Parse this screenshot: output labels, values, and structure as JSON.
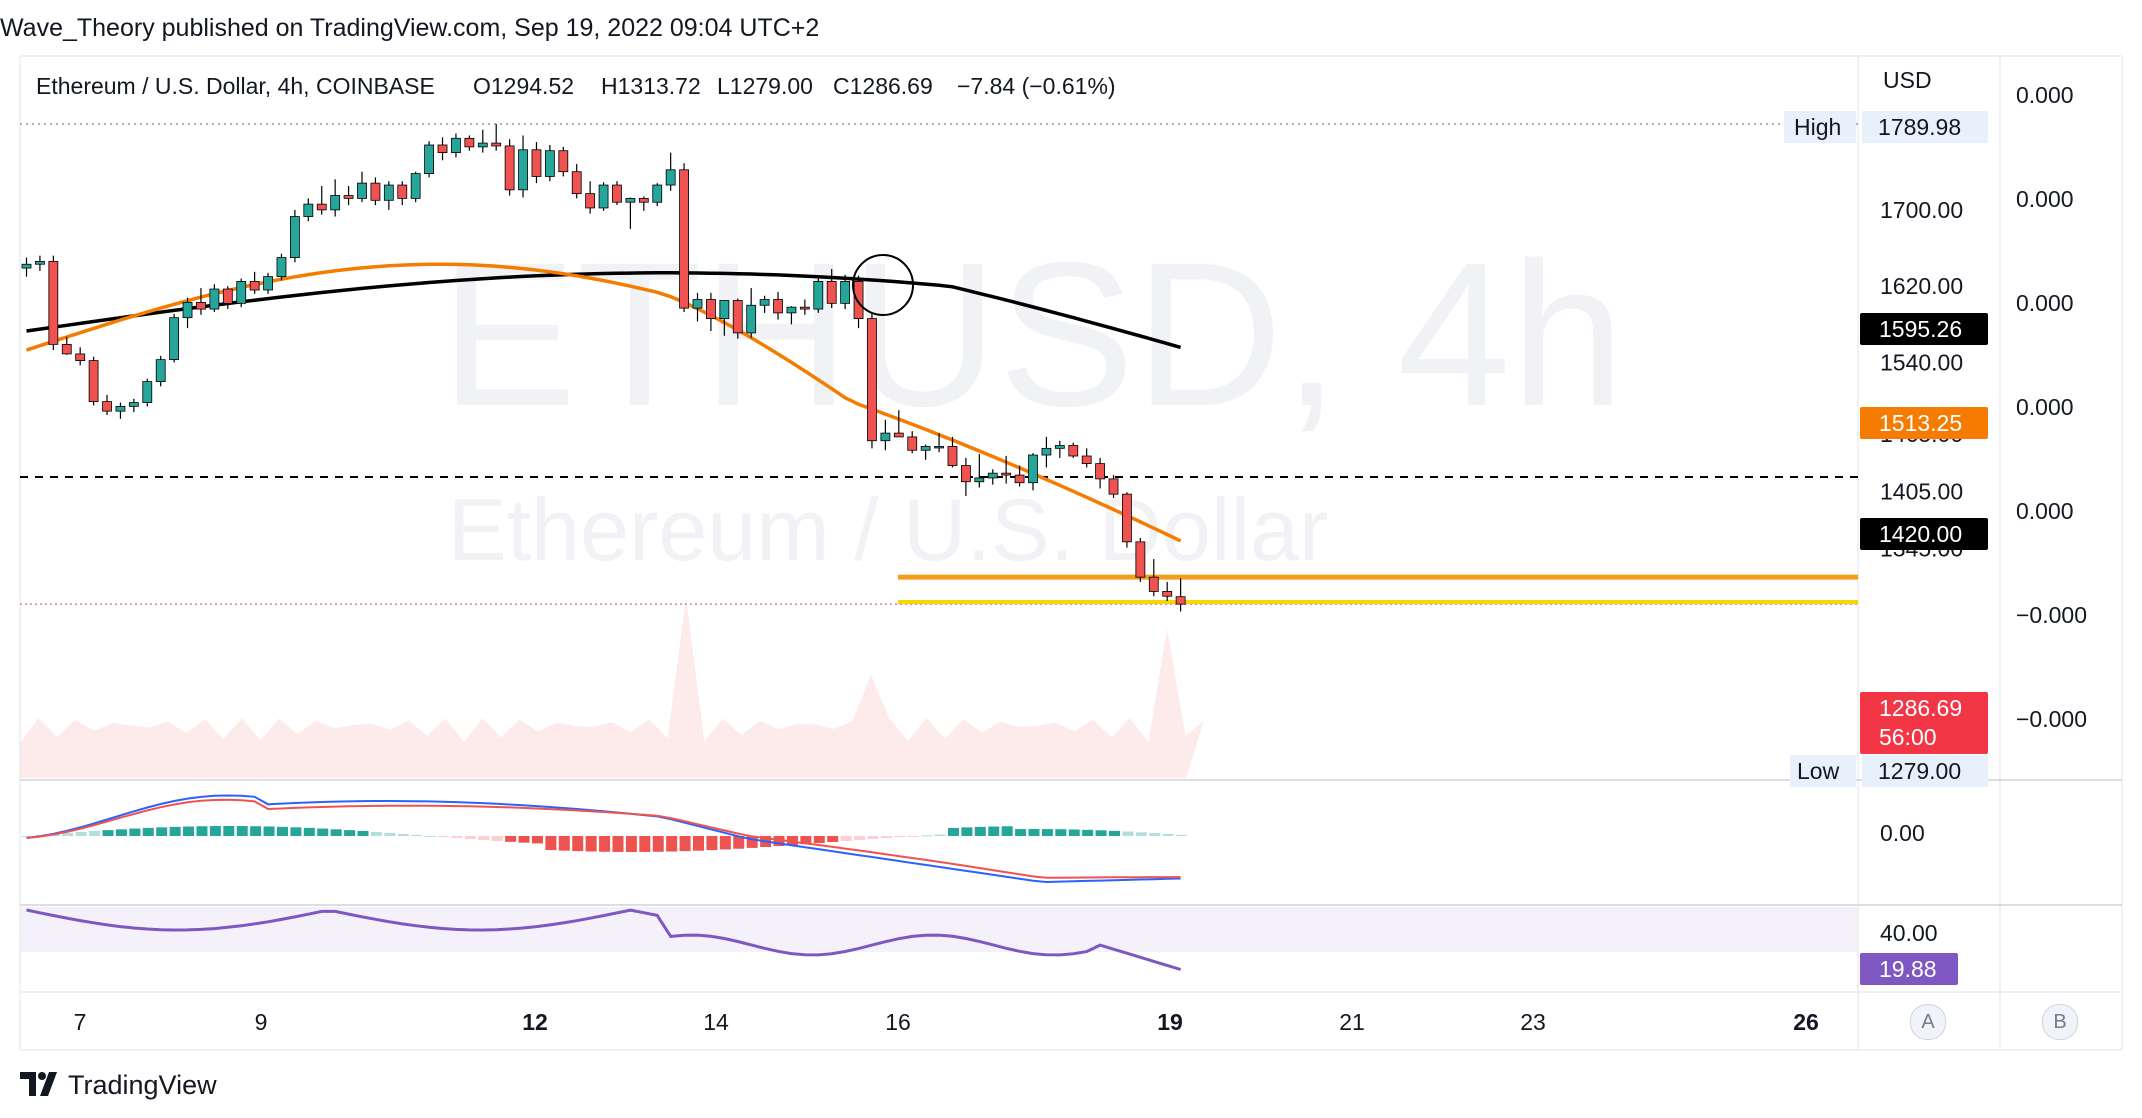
{
  "header": {
    "published": "Wave_Theory published on TradingView.com, Sep 19, 2022 09:04 UTC+2"
  },
  "legend": {
    "symbol": "Ethereum / U.S. Dollar, 4h, COINBASE",
    "open": "O1294.52",
    "high": "H1313.72",
    "low": "L1279.00",
    "close": "C1286.69",
    "change": "−7.84 (−0.61%)"
  },
  "watermark": {
    "ticker": "ETHUSD, 4h",
    "name": "Ethereum / U.S. Dollar"
  },
  "price_scale": {
    "currency": "USD",
    "ticks": [
      "1700.00",
      "1620.00",
      "1540.00",
      "1465.00",
      "1405.00",
      "1345.00"
    ],
    "high_label": "High",
    "high_value": "1789.98",
    "low_label": "Low",
    "low_value": "1279.00",
    "ma_black_value": "1595.26",
    "ma_orange_value": "1513.25",
    "dashed_line_value": "1420.00",
    "last_price": "1286.69",
    "countdown": "56:00"
  },
  "secondary_scale": {
    "ticks": [
      "0.000",
      "0.000",
      "0.000",
      "0.000",
      "0.000",
      "−0.000",
      "−0.000"
    ]
  },
  "macd_scale": {
    "tick": "0.00"
  },
  "rsi_scale": {
    "tick": "40.00",
    "value": "19.88"
  },
  "time_axis": {
    "labels": [
      {
        "text": "7",
        "bold": false
      },
      {
        "text": "9",
        "bold": false
      },
      {
        "text": "12",
        "bold": true
      },
      {
        "text": "14",
        "bold": false
      },
      {
        "text": "16",
        "bold": false
      },
      {
        "text": "19",
        "bold": true
      },
      {
        "text": "21",
        "bold": false
      },
      {
        "text": "23",
        "bold": false
      },
      {
        "text": "26",
        "bold": true
      }
    ]
  },
  "buttons": {
    "auto": "A",
    "log": "B"
  },
  "footer": {
    "brand": "TradingView"
  },
  "colors": {
    "up": "#26a69a",
    "down": "#ef5350",
    "ma_black": "#000000",
    "ma_orange": "#f57c00",
    "support_orange": "#f59c1a",
    "support_yellow": "#f5d800",
    "macd": "#2962ff",
    "signal": "#ef5350",
    "rsi": "#7e57c2",
    "last_price_bg": "#f23645",
    "rsi_label_bg": "#7e57c2"
  },
  "chart_data": {
    "type": "candlestick",
    "interval": "4h",
    "price_range": [
      1270,
      1800
    ],
    "x_axis_dates": [
      "7",
      "9",
      "12",
      "14",
      "16",
      "19",
      "21",
      "23",
      "26"
    ],
    "candles": [
      [
        1639,
        1650,
        1630,
        1643
      ],
      [
        1643,
        1652,
        1636,
        1646
      ],
      [
        1646,
        1652,
        1553,
        1559
      ],
      [
        1559,
        1567,
        1548,
        1549
      ],
      [
        1549,
        1556,
        1537,
        1542
      ],
      [
        1542,
        1546,
        1495,
        1499
      ],
      [
        1499,
        1506,
        1485,
        1489
      ],
      [
        1489,
        1498,
        1481,
        1494
      ],
      [
        1494,
        1502,
        1488,
        1498
      ],
      [
        1498,
        1523,
        1494,
        1520
      ],
      [
        1520,
        1547,
        1515,
        1543
      ],
      [
        1543,
        1591,
        1540,
        1587
      ],
      [
        1587,
        1608,
        1576,
        1603
      ],
      [
        1603,
        1618,
        1590,
        1596
      ],
      [
        1596,
        1622,
        1593,
        1617
      ],
      [
        1617,
        1620,
        1596,
        1602
      ],
      [
        1602,
        1628,
        1598,
        1625
      ],
      [
        1625,
        1635,
        1612,
        1616
      ],
      [
        1616,
        1634,
        1612,
        1630
      ],
      [
        1630,
        1654,
        1626,
        1650
      ],
      [
        1650,
        1700,
        1645,
        1693
      ],
      [
        1693,
        1712,
        1688,
        1706
      ],
      [
        1706,
        1725,
        1695,
        1700
      ],
      [
        1700,
        1732,
        1693,
        1715
      ],
      [
        1715,
        1725,
        1705,
        1712
      ],
      [
        1712,
        1740,
        1708,
        1728
      ],
      [
        1728,
        1734,
        1705,
        1710
      ],
      [
        1710,
        1730,
        1700,
        1726
      ],
      [
        1726,
        1730,
        1705,
        1712
      ],
      [
        1712,
        1740,
        1708,
        1738
      ],
      [
        1738,
        1772,
        1734,
        1768
      ],
      [
        1768,
        1776,
        1752,
        1760
      ],
      [
        1760,
        1780,
        1755,
        1775
      ],
      [
        1775,
        1778,
        1762,
        1766
      ],
      [
        1766,
        1784,
        1760,
        1770
      ],
      [
        1770,
        1790,
        1762,
        1767
      ],
      [
        1767,
        1774,
        1715,
        1721
      ],
      [
        1721,
        1778,
        1713,
        1763
      ],
      [
        1763,
        1771,
        1728,
        1735
      ],
      [
        1735,
        1768,
        1730,
        1762
      ],
      [
        1762,
        1766,
        1735,
        1740
      ],
      [
        1740,
        1748,
        1712,
        1717
      ],
      [
        1717,
        1730,
        1696,
        1702
      ],
      [
        1702,
        1729,
        1699,
        1726
      ],
      [
        1726,
        1730,
        1705,
        1708
      ],
      [
        1708,
        1713,
        1680,
        1712
      ],
      [
        1712,
        1714,
        1699,
        1708
      ],
      [
        1708,
        1728,
        1704,
        1726
      ],
      [
        1726,
        1760,
        1720,
        1742
      ],
      [
        1742,
        1749,
        1593,
        1597
      ],
      [
        1597,
        1613,
        1583,
        1606
      ],
      [
        1606,
        1613,
        1573,
        1586
      ],
      [
        1586,
        1603,
        1568,
        1605
      ],
      [
        1605,
        1607,
        1565,
        1571
      ],
      [
        1571,
        1618,
        1566,
        1600
      ],
      [
        1600,
        1610,
        1592,
        1606
      ],
      [
        1606,
        1614,
        1585,
        1592
      ],
      [
        1592,
        1599,
        1580,
        1598
      ],
      [
        1598,
        1606,
        1590,
        1596
      ],
      [
        1596,
        1628,
        1592,
        1625
      ],
      [
        1625,
        1638,
        1597,
        1602
      ],
      [
        1602,
        1632,
        1596,
        1625
      ],
      [
        1625,
        1631,
        1576,
        1586
      ],
      [
        1586,
        1592,
        1450,
        1458
      ],
      [
        1458,
        1480,
        1448,
        1466
      ],
      [
        1466,
        1490,
        1462,
        1462
      ],
      [
        1462,
        1468,
        1445,
        1448
      ],
      [
        1448,
        1454,
        1438,
        1452
      ],
      [
        1452,
        1466,
        1446,
        1452
      ],
      [
        1452,
        1462,
        1430,
        1432
      ],
      [
        1432,
        1440,
        1400,
        1415
      ],
      [
        1415,
        1444,
        1409,
        1419
      ],
      [
        1419,
        1428,
        1412,
        1424
      ],
      [
        1424,
        1442,
        1413,
        1422
      ],
      [
        1422,
        1432,
        1410,
        1414
      ],
      [
        1414,
        1445,
        1406,
        1443
      ],
      [
        1443,
        1462,
        1430,
        1450
      ],
      [
        1450,
        1458,
        1440,
        1453
      ],
      [
        1453,
        1456,
        1440,
        1442
      ],
      [
        1442,
        1450,
        1430,
        1434
      ],
      [
        1434,
        1440,
        1408,
        1418
      ],
      [
        1418,
        1422,
        1398,
        1402
      ],
      [
        1402,
        1404,
        1346,
        1352
      ],
      [
        1352,
        1356,
        1310,
        1315
      ],
      [
        1315,
        1334,
        1295,
        1300
      ],
      [
        1300,
        1310,
        1290,
        1295
      ],
      [
        1294.52,
        1313.72,
        1279.0,
        1286.69
      ]
    ],
    "ma_black": {
      "from": 1573,
      "to": 1595.26
    },
    "ma_orange": {
      "from": 1553,
      "to": 1513.25
    },
    "levels": {
      "dashed": 1420.0,
      "orange": 1315,
      "yellow": 1289,
      "high": 1789.98,
      "low": 1279.0
    },
    "rsi_last": 19.88
  }
}
